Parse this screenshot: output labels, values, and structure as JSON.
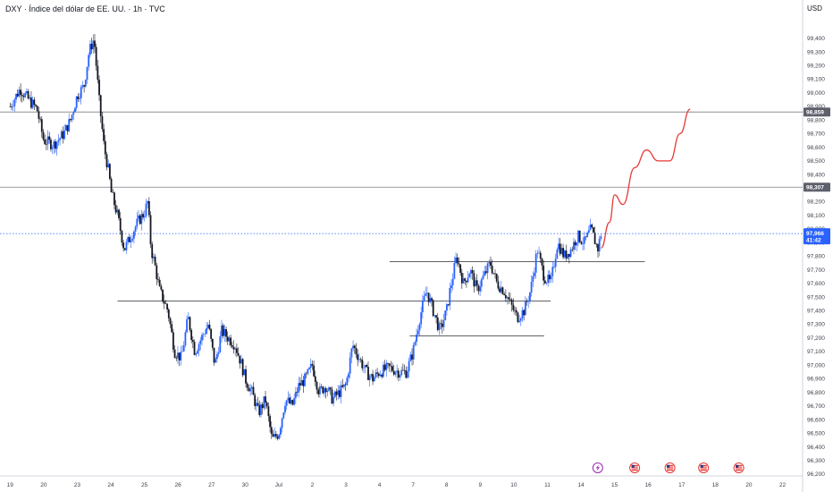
{
  "header": {
    "title": "DXY · Índice del dólar de EE. UU. · 1h · TVC",
    "currency": "USD"
  },
  "colors": {
    "up": "#2962ff",
    "down": "#131722",
    "projection": "#e53935",
    "level_line": "#131722",
    "price_line": "#2962ff",
    "level_tag": "#5d606b"
  },
  "chart_data": {
    "type": "candlestick",
    "ylim": [
      96.2,
      99.55
    ],
    "y_ticks": [
      "99,400",
      "99,300",
      "99,200",
      "99,100",
      "99,000",
      "98,900",
      "98,800",
      "98,700",
      "98,600",
      "98,500",
      "98,400",
      "98,300",
      "98,200",
      "98,100",
      "98,000",
      "97,900",
      "97,800",
      "97,700",
      "97,600",
      "97,500",
      "97,400",
      "97,300",
      "97,200",
      "97,100",
      "97,000",
      "96,900",
      "96,800",
      "96,700",
      "96,600",
      "96,500",
      "96,400",
      "96,300",
      "96,200"
    ],
    "x_ticks": [
      "19",
      "20",
      "23",
      "24",
      "25",
      "26",
      "27",
      "30",
      "Jul",
      "2",
      "3",
      "4",
      "7",
      "8",
      "9",
      "10",
      "11",
      "14",
      "15",
      "16",
      "17",
      "18",
      "20",
      "22"
    ],
    "x_tick_pos": [
      0,
      1,
      2,
      3,
      4,
      5,
      6,
      7,
      8,
      9,
      10,
      11,
      12,
      13,
      14,
      15,
      16,
      17,
      18,
      19,
      20,
      21,
      22,
      23
    ],
    "xlim": [
      -0.3,
      23.6
    ],
    "close_path": [
      [
        0.0,
        98.9
      ],
      [
        0.3,
        99.03
      ],
      [
        0.55,
        98.95
      ],
      [
        0.8,
        98.88
      ],
      [
        1.0,
        98.65
      ],
      [
        1.3,
        98.62
      ],
      [
        1.6,
        98.7
      ],
      [
        1.8,
        98.8
      ],
      [
        2.0,
        98.98
      ],
      [
        2.2,
        99.05
      ],
      [
        2.35,
        99.3
      ],
      [
        2.5,
        99.4
      ],
      [
        2.65,
        98.95
      ],
      [
        2.8,
        98.6
      ],
      [
        2.95,
        98.4
      ],
      [
        3.0,
        98.28
      ],
      [
        3.2,
        98.1
      ],
      [
        3.4,
        97.85
      ],
      [
        3.6,
        97.95
      ],
      [
        3.8,
        98.05
      ],
      [
        4.0,
        98.12
      ],
      [
        4.1,
        98.2
      ],
      [
        4.2,
        97.85
      ],
      [
        4.3,
        97.75
      ],
      [
        4.45,
        97.55
      ],
      [
        4.7,
        97.4
      ],
      [
        4.9,
        97.1
      ],
      [
        5.1,
        97.05
      ],
      [
        5.3,
        97.35
      ],
      [
        5.5,
        97.1
      ],
      [
        5.7,
        97.2
      ],
      [
        5.9,
        97.3
      ],
      [
        6.1,
        97.0
      ],
      [
        6.3,
        97.25
      ],
      [
        6.5,
        97.2
      ],
      [
        6.7,
        97.15
      ],
      [
        6.9,
        97.0
      ],
      [
        7.0,
        96.9
      ],
      [
        7.2,
        96.8
      ],
      [
        7.4,
        96.65
      ],
      [
        7.6,
        96.75
      ],
      [
        7.8,
        96.45
      ],
      [
        8.0,
        96.5
      ],
      [
        8.2,
        96.75
      ],
      [
        8.4,
        96.7
      ],
      [
        8.6,
        96.85
      ],
      [
        8.8,
        96.9
      ],
      [
        9.0,
        97.0
      ],
      [
        9.2,
        96.8
      ],
      [
        9.4,
        96.85
      ],
      [
        9.6,
        96.75
      ],
      [
        9.8,
        96.8
      ],
      [
        10.0,
        96.85
      ],
      [
        10.2,
        97.15
      ],
      [
        10.4,
        97.05
      ],
      [
        10.6,
        96.95
      ],
      [
        10.8,
        96.9
      ],
      [
        11.0,
        96.95
      ],
      [
        11.3,
        96.98
      ],
      [
        11.6,
        96.95
      ],
      [
        11.8,
        96.95
      ],
      [
        12.0,
        97.1
      ],
      [
        12.2,
        97.35
      ],
      [
        12.4,
        97.55
      ],
      [
        12.6,
        97.4
      ],
      [
        12.8,
        97.25
      ],
      [
        13.0,
        97.4
      ],
      [
        13.1,
        97.55
      ],
      [
        13.3,
        97.8
      ],
      [
        13.5,
        97.6
      ],
      [
        13.7,
        97.7
      ],
      [
        13.9,
        97.55
      ],
      [
        14.1,
        97.65
      ],
      [
        14.3,
        97.75
      ],
      [
        14.5,
        97.6
      ],
      [
        14.7,
        97.55
      ],
      [
        14.9,
        97.45
      ],
      [
        15.1,
        97.35
      ],
      [
        15.3,
        97.4
      ],
      [
        15.5,
        97.55
      ],
      [
        15.7,
        97.85
      ],
      [
        15.9,
        97.65
      ],
      [
        16.1,
        97.6
      ],
      [
        16.3,
        97.9
      ],
      [
        16.5,
        97.8
      ],
      [
        16.7,
        97.85
      ],
      [
        16.9,
        97.95
      ],
      [
        17.1,
        97.9
      ],
      [
        17.3,
        98.0
      ],
      [
        17.5,
        97.85
      ],
      [
        17.6,
        97.97
      ]
    ],
    "projection_path": [
      [
        17.6,
        97.86
      ],
      [
        17.85,
        98.05
      ],
      [
        18.0,
        98.25
      ],
      [
        18.25,
        98.18
      ],
      [
        18.6,
        98.45
      ],
      [
        18.95,
        98.58
      ],
      [
        19.3,
        98.5
      ],
      [
        19.65,
        98.5
      ],
      [
        19.95,
        98.7
      ],
      [
        20.25,
        98.88
      ]
    ],
    "horizontal_levels": [
      {
        "x": [
          -0.3,
          23.6
        ],
        "y": 98.859
      },
      {
        "x": [
          -0.3,
          23.6
        ],
        "y": 98.307
      },
      {
        "x": [
          11.3,
          18.9
        ],
        "y": 97.76
      },
      {
        "x": [
          3.2,
          16.1
        ],
        "y": 97.47
      },
      {
        "x": [
          11.9,
          15.9
        ],
        "y": 97.215
      }
    ],
    "price_tags": [
      {
        "value": "98,859",
        "y": 98.859,
        "kind": "level"
      },
      {
        "value": "98,307",
        "y": 98.307,
        "kind": "level"
      },
      {
        "value": "97,966",
        "y": 97.966,
        "kind": "last",
        "sub": "41:42"
      }
    ],
    "event_markers": [
      {
        "icon": "lightning-icon",
        "x": 17.5
      },
      {
        "icon": "us-flag-icon",
        "x": 18.6
      },
      {
        "icon": "us-flag-icon",
        "x": 19.65
      },
      {
        "icon": "us-flag-icon",
        "x": 20.65
      },
      {
        "icon": "us-flag-icon",
        "x": 21.7
      }
    ]
  }
}
